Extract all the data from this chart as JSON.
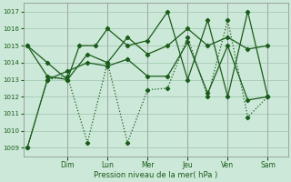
{
  "xlabel": "Pression niveau de la mer( hPa )",
  "bg_color": "#cce8d8",
  "grid_color": "#aacfba",
  "line_color": "#1a5c1a",
  "ylim": [
    1008.5,
    1017.5
  ],
  "yticks": [
    1009,
    1010,
    1011,
    1012,
    1013,
    1014,
    1015,
    1016,
    1017
  ],
  "x_labels": [
    "Dim",
    "Lun",
    "Mer",
    "Jeu",
    "Ven",
    "Sam"
  ],
  "x_tick_positions": [
    1,
    2,
    3,
    4,
    5,
    6
  ],
  "xlim": [
    -0.1,
    6.5
  ],
  "series": [
    {
      "x": [
        0.0,
        0.5,
        1.0,
        1.3,
        1.7,
        2.0,
        2.5,
        3.0,
        3.5,
        4.0,
        4.5,
        5.0,
        5.5,
        6.0
      ],
      "y": [
        1015.0,
        1014.0,
        1013.0,
        1015.0,
        1015.0,
        1016.0,
        1015.0,
        1015.3,
        1017.0,
        1013.0,
        1016.5,
        1012.0,
        1017.0,
        1012.0
      ],
      "style": "-",
      "marker": "D",
      "markersize": 2.2,
      "lw": 0.9
    },
    {
      "x": [
        0.0,
        0.5,
        1.0,
        1.5,
        2.0,
        2.5,
        3.0,
        3.5,
        4.0,
        4.5,
        5.0,
        5.5,
        6.0
      ],
      "y": [
        1015.0,
        1013.2,
        1013.0,
        1014.5,
        1014.0,
        1015.5,
        1014.5,
        1015.0,
        1016.0,
        1015.0,
        1015.5,
        1014.8,
        1015.0
      ],
      "style": "-",
      "marker": "D",
      "markersize": 2.2,
      "lw": 0.9
    },
    {
      "x": [
        0.0,
        0.5,
        1.0,
        1.5,
        2.0,
        2.5,
        3.0,
        3.5,
        4.0,
        4.5,
        5.0,
        5.5,
        6.0
      ],
      "y": [
        1009.0,
        1013.0,
        1013.2,
        1009.3,
        1014.0,
        1009.3,
        1012.4,
        1012.5,
        1015.5,
        1012.0,
        1016.5,
        1010.8,
        1012.0
      ],
      "style": ":",
      "marker": "D",
      "markersize": 2.2,
      "lw": 0.9
    },
    {
      "x": [
        0.0,
        0.5,
        1.0,
        1.5,
        2.0,
        2.5,
        3.0,
        3.5,
        4.0,
        4.5,
        5.0,
        5.5,
        6.0
      ],
      "y": [
        1009.0,
        1013.0,
        1013.5,
        1014.0,
        1013.8,
        1014.2,
        1013.2,
        1013.2,
        1015.2,
        1012.2,
        1015.0,
        1011.8,
        1012.0
      ],
      "style": "-",
      "marker": "D",
      "markersize": 2.2,
      "lw": 0.9
    }
  ]
}
